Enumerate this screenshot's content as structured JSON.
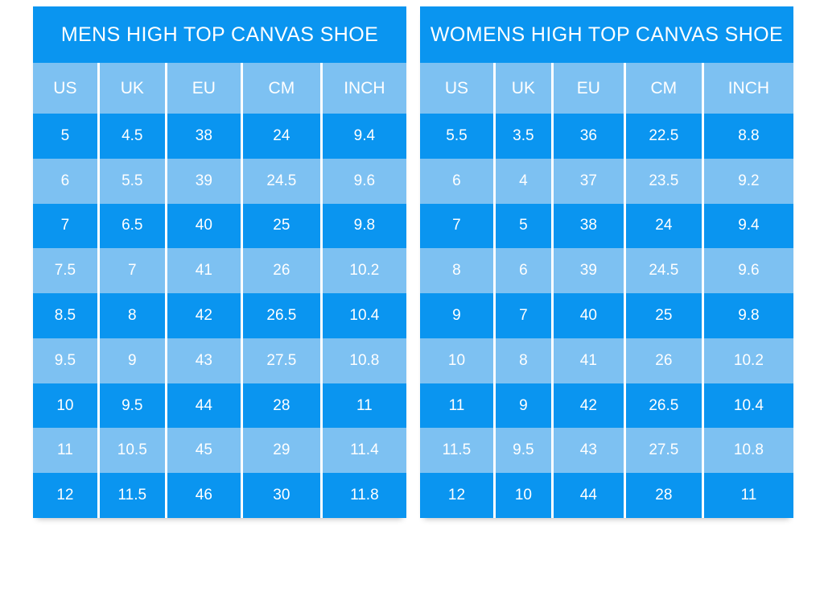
{
  "colors": {
    "primary_blue": "#0a95f0",
    "light_blue": "#7dc1f2",
    "text": "#ffffff",
    "background": "#ffffff"
  },
  "chart_data": [
    {
      "type": "table",
      "title": "MENS HIGH TOP CANVAS SHOE",
      "columns": [
        "US",
        "UK",
        "EU",
        "CM",
        "INCH"
      ],
      "rows": [
        [
          "5",
          "4.5",
          "38",
          "24",
          "9.4"
        ],
        [
          "6",
          "5.5",
          "39",
          "24.5",
          "9.6"
        ],
        [
          "7",
          "6.5",
          "40",
          "25",
          "9.8"
        ],
        [
          "7.5",
          "7",
          "41",
          "26",
          "10.2"
        ],
        [
          "8.5",
          "8",
          "42",
          "26.5",
          "10.4"
        ],
        [
          "9.5",
          "9",
          "43",
          "27.5",
          "10.8"
        ],
        [
          "10",
          "9.5",
          "44",
          "28",
          "11"
        ],
        [
          "11",
          "10.5",
          "45",
          "29",
          "11.4"
        ],
        [
          "12",
          "11.5",
          "46",
          "30",
          "11.8"
        ]
      ]
    },
    {
      "type": "table",
      "title": "WOMENS HIGH TOP CANVAS SHOE",
      "columns": [
        "US",
        "UK",
        "EU",
        "CM",
        "INCH"
      ],
      "rows": [
        [
          "5.5",
          "3.5",
          "36",
          "22.5",
          "8.8"
        ],
        [
          "6",
          "4",
          "37",
          "23.5",
          "9.2"
        ],
        [
          "7",
          "5",
          "38",
          "24",
          "9.4"
        ],
        [
          "8",
          "6",
          "39",
          "24.5",
          "9.6"
        ],
        [
          "9",
          "7",
          "40",
          "25",
          "9.8"
        ],
        [
          "10",
          "8",
          "41",
          "26",
          "10.2"
        ],
        [
          "11",
          "9",
          "42",
          "26.5",
          "10.4"
        ],
        [
          "11.5",
          "9.5",
          "43",
          "27.5",
          "10.8"
        ],
        [
          "12",
          "10",
          "44",
          "28",
          "11"
        ]
      ]
    }
  ]
}
